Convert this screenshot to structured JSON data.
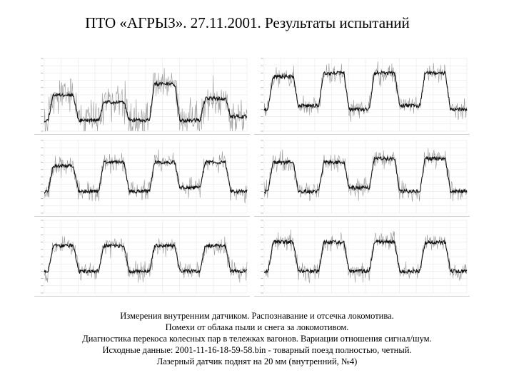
{
  "title": "ПТО «АГРЫЗ». 27.11.2001. Результаты испытаний",
  "caption": {
    "line1": "Измерения внутренним датчиком. Распознавание и отсечка локомотива.",
    "line2": "Помехи от облака пыли и снега за локомотивом.",
    "line3": "Диагностика перекоса колесных пар в тележках вагонов. Вариации отношения сигнал/шум.",
    "line4": "Исходные данные: 2001-11-16-18-59-58.bin  - товарный поезд полностью, четный.",
    "line5": "Лазерный датчик поднят на 20 мм (внутренний, №4)"
  },
  "colors": {
    "trace": "#111111",
    "noise": "#9a9a9a",
    "grid": "#e3e3e3"
  },
  "chart_data": [
    {
      "type": "line",
      "profile": "locomotive",
      "levels": [
        0.15,
        0.5,
        0.15,
        0.4,
        0.15,
        0.65,
        0.15,
        0.45,
        0.2
      ],
      "seed": 11
    },
    {
      "type": "line",
      "profile": "wagons",
      "levels": [
        0.3,
        0.75,
        0.35,
        0.8,
        0.3,
        0.8,
        0.35,
        0.8,
        0.3
      ],
      "seed": 23
    },
    {
      "type": "line",
      "profile": "wagons",
      "levels": [
        0.3,
        0.65,
        0.3,
        0.7,
        0.3,
        0.7,
        0.35,
        0.7,
        0.3
      ],
      "seed": 37
    },
    {
      "type": "line",
      "profile": "wagons",
      "levels": [
        0.3,
        0.7,
        0.3,
        0.7,
        0.35,
        0.75,
        0.3,
        0.75,
        0.3
      ],
      "seed": 41
    },
    {
      "type": "line",
      "profile": "wagons",
      "levels": [
        0.3,
        0.65,
        0.3,
        0.65,
        0.3,
        0.65,
        0.3,
        0.65,
        0.3
      ],
      "seed": 53
    },
    {
      "type": "line",
      "profile": "wagons",
      "levels": [
        0.3,
        0.7,
        0.3,
        0.7,
        0.3,
        0.7,
        0.3,
        0.7,
        0.3
      ],
      "seed": 67
    }
  ]
}
